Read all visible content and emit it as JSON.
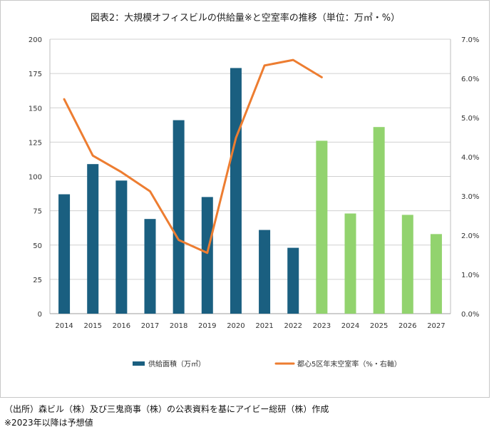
{
  "chart_data": {
    "type": "bar",
    "title": "図表2：大規模オフィスビルの供給量※と空室率の推移（単位：万㎡・%）",
    "categories": [
      "2014",
      "2015",
      "2016",
      "2017",
      "2018",
      "2019",
      "2020",
      "2021",
      "2022",
      "2023",
      "2024",
      "2025",
      "2026",
      "2027"
    ],
    "left_axis": {
      "min": 0,
      "max": 200,
      "step": 25,
      "tick_labels": [
        "0",
        "25",
        "50",
        "75",
        "100",
        "125",
        "150",
        "175",
        "200"
      ]
    },
    "right_axis": {
      "min": 0,
      "max": 7,
      "step": 1,
      "tick_labels": [
        "0.0%",
        "1.0%",
        "2.0%",
        "3.0%",
        "4.0%",
        "5.0%",
        "6.0%",
        "7.0%"
      ]
    },
    "series": [
      {
        "name": "供給面積（万㎡）",
        "type": "bar",
        "axis": "left",
        "values": [
          87,
          109,
          97,
          69,
          141,
          85,
          179,
          61,
          48,
          126,
          73,
          136,
          72,
          58
        ],
        "forecast_from_index": 9
      },
      {
        "name": "都心5区年末空室率（%・右軸）",
        "type": "line",
        "axis": "right",
        "values": [
          5.47,
          4.03,
          3.61,
          3.12,
          1.88,
          1.55,
          4.48,
          6.33,
          6.47,
          6.03,
          null,
          null,
          null,
          null
        ]
      }
    ],
    "colors": {
      "bar_actual": "#1a5f80",
      "bar_forecast": "#92d36e",
      "line": "#ed7d31",
      "grid": "#d0d0d0"
    },
    "legend_position": "bottom"
  },
  "notes": {
    "source": "（出所）森ビル（株）及び三鬼商事（株）の公表資料を基にアイビー総研（株）作成",
    "forecast": "※2023年以降は予想値"
  }
}
